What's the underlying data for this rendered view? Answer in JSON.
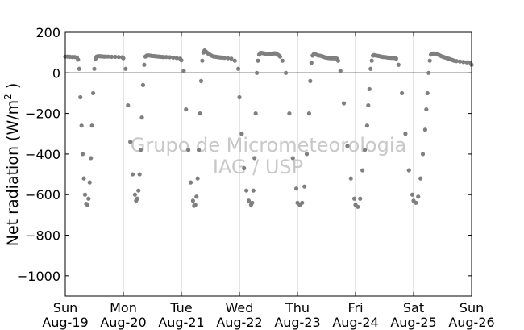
{
  "chart_data": {
    "type": "scatter",
    "title": "",
    "ylabel_text": "Net radiation (W/m",
    "ylabel_sup": "2",
    "ylabel_close": " )",
    "xlabel": "",
    "ylim": [
      -1100,
      200
    ],
    "yticks": [
      200,
      0,
      -200,
      -400,
      -600,
      -800,
      -1000
    ],
    "ytick_labels": [
      "200",
      "0",
      "−200",
      "−400",
      "−600",
      "−800",
      "−1000"
    ],
    "xlim_days": [
      0,
      7
    ],
    "x_days_labels": [
      {
        "day": "Sun",
        "date": "Aug-19"
      },
      {
        "day": "Mon",
        "date": "Aug-20"
      },
      {
        "day": "Tue",
        "date": "Aug-21"
      },
      {
        "day": "Wed",
        "date": "Aug-22"
      },
      {
        "day": "Thu",
        "date": "Aug-23"
      },
      {
        "day": "Fri",
        "date": "Aug-24"
      },
      {
        "day": "Sat",
        "date": "Aug-25"
      },
      {
        "day": "Sun",
        "date": "Aug-26"
      }
    ],
    "zero_line": true,
    "vertical_day_grid": true,
    "marker_color": "#7f7f7f",
    "watermark_line1": "Grupo de Micrometeorologia",
    "watermark_line2": "IAG / USP",
    "series": [
      {
        "x": [
          0.0,
          0.04,
          0.08,
          0.12,
          0.16,
          0.2,
          0.22,
          0.24,
          0.26,
          0.28,
          0.3,
          0.32,
          0.34,
          0.36,
          0.38,
          0.4,
          0.42,
          0.44,
          0.46,
          0.48,
          0.5,
          0.52,
          0.54,
          0.56,
          0.58,
          0.6,
          0.62,
          0.64,
          0.66,
          0.68,
          0.7,
          0.74,
          0.8,
          0.86,
          0.92,
          0.98,
          1.0,
          1.04,
          1.08,
          1.12,
          1.16,
          1.2,
          1.22,
          1.24,
          1.26,
          1.28,
          1.3,
          1.32,
          1.34,
          1.36,
          1.38,
          1.4,
          1.42,
          1.44,
          1.46,
          1.48,
          1.5,
          1.52,
          1.54,
          1.56,
          1.58,
          1.6,
          1.62,
          1.64,
          1.66,
          1.68,
          1.7,
          1.74,
          1.8,
          1.86,
          1.92,
          1.98,
          2.0,
          2.04,
          2.08,
          2.12,
          2.16,
          2.2,
          2.22,
          2.24,
          2.26,
          2.28,
          2.3,
          2.32,
          2.34,
          2.36,
          2.38,
          2.4,
          2.42,
          2.44,
          2.46,
          2.48,
          2.5,
          2.52,
          2.54,
          2.56,
          2.58,
          2.6,
          2.62,
          2.64,
          2.66,
          2.68,
          2.7,
          2.74,
          2.8,
          2.86,
          2.92,
          2.98,
          3.0,
          3.04,
          3.08,
          3.12,
          3.16,
          3.2,
          3.22,
          3.24,
          3.26,
          3.28,
          3.3,
          3.32,
          3.34,
          3.36,
          3.38,
          3.4,
          3.42,
          3.44,
          3.46,
          3.48,
          3.5,
          3.52,
          3.54,
          3.56,
          3.58,
          3.6,
          3.62,
          3.64,
          3.66,
          3.68,
          3.7,
          3.74,
          3.8,
          3.86,
          3.92,
          3.98,
          4.0,
          4.04,
          4.08,
          4.12,
          4.16,
          4.2,
          4.22,
          4.24,
          4.26,
          4.28,
          4.3,
          4.32,
          4.34,
          4.36,
          4.38,
          4.4,
          4.42,
          4.44,
          4.46,
          4.48,
          4.5,
          4.52,
          4.54,
          4.56,
          4.58,
          4.6,
          4.62,
          4.64,
          4.66,
          4.68,
          4.7,
          4.74,
          4.8,
          4.86,
          4.92,
          4.98,
          5.0,
          5.04,
          5.08,
          5.12,
          5.16,
          5.2,
          5.22,
          5.24,
          5.26,
          5.28,
          5.3,
          5.32,
          5.34,
          5.36,
          5.38,
          5.4,
          5.42,
          5.44,
          5.46,
          5.48,
          5.5,
          5.52,
          5.54,
          5.56,
          5.58,
          5.6,
          5.62,
          5.64,
          5.66,
          5.68,
          5.7,
          5.74,
          5.8,
          5.86,
          5.92,
          5.98,
          6.0,
          6.04,
          6.08,
          6.12,
          6.16,
          6.2,
          6.22,
          6.24,
          6.26,
          6.28,
          6.3,
          6.32,
          6.34,
          6.36,
          6.38,
          6.4,
          6.42,
          6.44,
          6.46,
          6.48,
          6.5,
          6.52,
          6.54,
          6.56,
          6.58,
          6.6,
          6.62,
          6.64,
          6.66,
          6.68,
          6.7,
          6.74,
          6.8,
          6.86,
          6.92,
          6.98,
          7.0
        ],
        "y": [
          80,
          80,
          79,
          78,
          78,
          76,
          65,
          20,
          -120,
          -260,
          -400,
          -520,
          -600,
          -645,
          -650,
          -620,
          -540,
          -420,
          -260,
          -100,
          20,
          70,
          80,
          82,
          82,
          82,
          81,
          81,
          80,
          80,
          80,
          80,
          79,
          79,
          78,
          77,
          72,
          20,
          -160,
          -340,
          -500,
          -600,
          -630,
          -620,
          -580,
          -500,
          -380,
          -220,
          -60,
          40,
          80,
          85,
          86,
          86,
          85,
          84,
          83,
          83,
          82,
          82,
          81,
          80,
          80,
          79,
          79,
          78,
          78,
          78,
          77,
          75,
          73,
          70,
          62,
          10,
          -180,
          -380,
          -540,
          -630,
          -655,
          -650,
          -610,
          -520,
          -380,
          -200,
          -40,
          60,
          100,
          110,
          105,
          100,
          95,
          92,
          88,
          85,
          82,
          80,
          80,
          79,
          78,
          77,
          76,
          76,
          75,
          74,
          72,
          70,
          60,
          20,
          -120,
          -300,
          -470,
          -580,
          -630,
          -650,
          -640,
          -580,
          -420,
          -200,
          0,
          60,
          90,
          98,
          98,
          97,
          96,
          95,
          94,
          93,
          92,
          92,
          92,
          93,
          95,
          96,
          96,
          94,
          90,
          86,
          80,
          60,
          0,
          -200,
          -420,
          -570,
          -640,
          -650,
          -640,
          -560,
          -400,
          -200,
          -40,
          50,
          85,
          92,
          92,
          90,
          88,
          86,
          85,
          84,
          83,
          80,
          78,
          76,
          75,
          74,
          73,
          72,
          72,
          72,
          72,
          72,
          71,
          70,
          60,
          10,
          -150,
          -360,
          -520,
          -620,
          -650,
          -660,
          -620,
          -480,
          -380,
          -260,
          -160,
          -80,
          20,
          60,
          85,
          88,
          86,
          85,
          84,
          83,
          82,
          80,
          79,
          78,
          78,
          77,
          76,
          75,
          75,
          74,
          74,
          74,
          74,
          73,
          70,
          40,
          -100,
          -300,
          -480,
          -600,
          -630,
          -640,
          -610,
          -520,
          -400,
          -280,
          -180,
          -100,
          0,
          60,
          90,
          95,
          95,
          94,
          93,
          92,
          90,
          88,
          85,
          82,
          80,
          78,
          76,
          74,
          72,
          70,
          68,
          66,
          64,
          62,
          60,
          58,
          56,
          54,
          52,
          50,
          40
        ]
      }
    ]
  }
}
